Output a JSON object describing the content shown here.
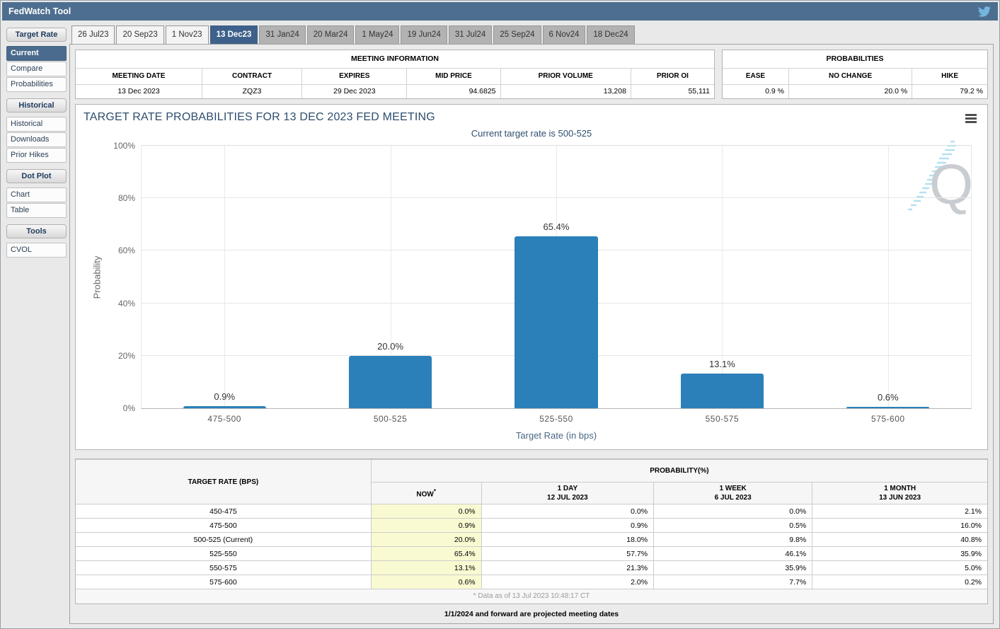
{
  "header": {
    "title": "FedWatch Tool"
  },
  "icons": {
    "topbar_social": "twitter-bird-icon",
    "chart_menu": "hamburger-menu-icon",
    "chart_watermark": "quikstrike-q-logo"
  },
  "colors": {
    "topbar_bg": "#4d6e8f",
    "selected_tab_bg": "#3d618a",
    "current_item_bg": "#4a6b8d",
    "bar": "#2b80ba",
    "now_column_bg": "#fafad2",
    "title_text": "#2e4d6e"
  },
  "sidebar": {
    "sections": [
      {
        "header": "Target Rate",
        "items": [
          {
            "label": "Current",
            "selected": true
          },
          {
            "label": "Compare"
          },
          {
            "label": "Probabilities"
          }
        ]
      },
      {
        "header": "Historical",
        "items": [
          {
            "label": "Historical"
          },
          {
            "label": "Downloads"
          },
          {
            "label": "Prior Hikes"
          }
        ]
      },
      {
        "header": "Dot Plot",
        "items": [
          {
            "label": "Chart"
          },
          {
            "label": "Table"
          }
        ]
      },
      {
        "header": "Tools",
        "items": [
          {
            "label": "CVOL"
          }
        ]
      }
    ]
  },
  "tabs": [
    {
      "label": "26 Jul23",
      "state": "past"
    },
    {
      "label": "20 Sep23",
      "state": "past"
    },
    {
      "label": "1 Nov23",
      "state": "past"
    },
    {
      "label": "13 Dec23",
      "state": "selected"
    },
    {
      "label": "31 Jan24",
      "state": "future"
    },
    {
      "label": "20 Mar24",
      "state": "future"
    },
    {
      "label": "1 May24",
      "state": "future"
    },
    {
      "label": "19 Jun24",
      "state": "future"
    },
    {
      "label": "31 Jul24",
      "state": "future"
    },
    {
      "label": "25 Sep24",
      "state": "future"
    },
    {
      "label": "6 Nov24",
      "state": "future"
    },
    {
      "label": "18 Dec24",
      "state": "future"
    }
  ],
  "meeting_information": {
    "title": "MEETING INFORMATION",
    "columns": [
      "MEETING DATE",
      "CONTRACT",
      "EXPIRES",
      "MID PRICE",
      "PRIOR VOLUME",
      "PRIOR OI"
    ],
    "values": [
      "13 Dec 2023",
      "ZQZ3",
      "29 Dec 2023",
      "94.6825",
      "13,208",
      "55,111"
    ]
  },
  "probabilities_summary": {
    "title": "PROBABILITIES",
    "columns": [
      "EASE",
      "NO CHANGE",
      "HIKE"
    ],
    "values": [
      "0.9 %",
      "20.0 %",
      "79.2 %"
    ]
  },
  "chart_data": {
    "type": "bar",
    "title": "TARGET RATE PROBABILITIES FOR 13 DEC 2023 FED MEETING",
    "subtitle": "Current target rate is 500-525",
    "categories": [
      "475-500",
      "500-525",
      "525-550",
      "550-575",
      "575-600"
    ],
    "values": [
      0.9,
      20.0,
      65.4,
      13.1,
      0.6
    ],
    "labels": [
      "0.9%",
      "20.0%",
      "65.4%",
      "13.1%",
      "0.6%"
    ],
    "xlabel": "Target Rate (in bps)",
    "ylabel": "Probability",
    "ylim": [
      0,
      100
    ],
    "yticks": [
      "0%",
      "20%",
      "40%",
      "60%",
      "80%",
      "100%"
    ],
    "grid": true,
    "legend": false
  },
  "probability_table": {
    "col1_header": "TARGET RATE (BPS)",
    "group_header": "PROBABILITY(%)",
    "columns": [
      {
        "line1": "NOW",
        "sup": "*"
      },
      {
        "line1": "1 DAY",
        "line2": "12 JUL 2023"
      },
      {
        "line1": "1 WEEK",
        "line2": "6 JUL 2023"
      },
      {
        "line1": "1 MONTH",
        "line2": "13 JUN 2023"
      }
    ],
    "rows": [
      {
        "rate": "450-475",
        "now": "0.0%",
        "d1": "0.0%",
        "w1": "0.0%",
        "m1": "2.1%"
      },
      {
        "rate": "475-500",
        "now": "0.9%",
        "d1": "0.9%",
        "w1": "0.5%",
        "m1": "16.0%"
      },
      {
        "rate": "500-525 (Current)",
        "now": "20.0%",
        "d1": "18.0%",
        "w1": "9.8%",
        "m1": "40.8%"
      },
      {
        "rate": "525-550",
        "now": "65.4%",
        "d1": "57.7%",
        "w1": "46.1%",
        "m1": "35.9%"
      },
      {
        "rate": "550-575",
        "now": "13.1%",
        "d1": "21.3%",
        "w1": "35.9%",
        "m1": "5.0%"
      },
      {
        "rate": "575-600",
        "now": "0.6%",
        "d1": "2.0%",
        "w1": "7.7%",
        "m1": "0.2%"
      }
    ],
    "footnote": "* Data as of 13 Jul 2023 10:48:17 CT"
  },
  "footer_note": "1/1/2024 and forward are projected meeting dates"
}
